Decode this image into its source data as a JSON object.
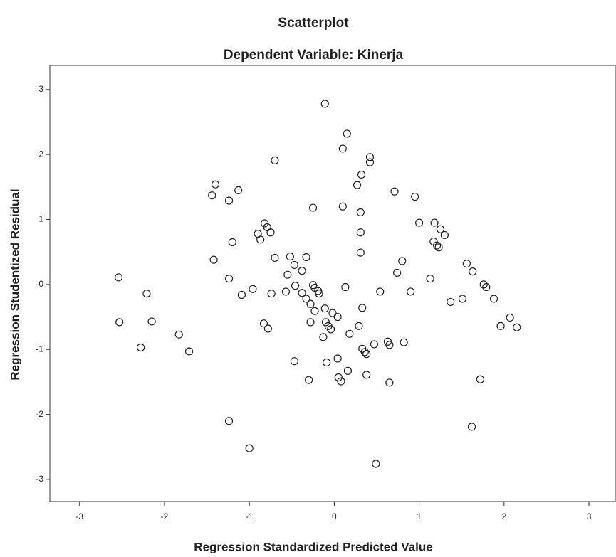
{
  "chart_data": {
    "type": "scatter",
    "title": "Scatterplot",
    "subtitle": "Dependent Variable: Kinerja",
    "x_label": "Regression Standardized Predicted Value",
    "y_label": "Regression Studentized Residual",
    "xlim": [
      -3.35,
      3.31
    ],
    "ylim": [
      -3.34,
      3.37
    ],
    "xticks": [
      -3,
      -2,
      -1,
      0,
      1,
      2,
      3
    ],
    "yticks": [
      -3,
      -2,
      -1,
      0,
      1,
      2,
      3
    ],
    "color": "#222222",
    "x": [
      -0.11,
      0.15,
      0.1,
      0.42,
      0.42,
      -0.7,
      0.32,
      -1.4,
      -1.13,
      -1.44,
      -1.24,
      0.27,
      0.71,
      0.95,
      -0.25,
      0.1,
      0.31,
      -0.82,
      -0.79,
      -0.75,
      -0.9,
      -0.87,
      1.0,
      1.18,
      1.25,
      1.3,
      0.31,
      -1.2,
      1.17,
      1.21,
      1.23,
      0.31,
      -0.7,
      -0.52,
      -0.33,
      -1.42,
      0.8,
      1.56,
      -0.47,
      -0.38,
      1.63,
      0.74,
      -0.55,
      1.13,
      -2.54,
      -1.24,
      1.76,
      1.79,
      -0.25,
      -0.23,
      -0.46,
      0.13,
      -0.96,
      -0.19,
      -1.09,
      -0.74,
      -0.57,
      -0.38,
      -0.18,
      0.54,
      0.9,
      -2.21,
      -0.33,
      1.51,
      1.88,
      -0.28,
      1.37,
      -0.23,
      -0.11,
      0.33,
      -0.02,
      0.04,
      -2.53,
      -2.15,
      -0.28,
      -0.1,
      -0.07,
      -0.04,
      -0.83,
      -0.78,
      0.29,
      1.96,
      2.07,
      2.15,
      0.18,
      -0.13,
      -1.83,
      0.63,
      0.65,
      0.82,
      0.47,
      0.33,
      0.36,
      0.38,
      -2.28,
      -1.71,
      0.04,
      -0.47,
      -0.09,
      0.16,
      0.05,
      0.08,
      0.38,
      -0.3,
      0.65,
      1.72,
      -1.24,
      1.62,
      -1.0,
      0.49
    ],
    "y": [
      2.78,
      2.32,
      2.09,
      1.96,
      1.88,
      1.91,
      1.69,
      1.54,
      1.45,
      1.37,
      1.29,
      1.53,
      1.43,
      1.35,
      1.18,
      1.2,
      1.11,
      0.94,
      0.88,
      0.8,
      0.78,
      0.69,
      0.95,
      0.95,
      0.85,
      0.76,
      0.8,
      0.65,
      0.66,
      0.6,
      0.57,
      0.49,
      0.41,
      0.43,
      0.42,
      0.38,
      0.36,
      0.32,
      0.3,
      0.21,
      0.2,
      0.18,
      0.15,
      0.09,
      0.11,
      0.09,
      0.0,
      -0.04,
      -0.01,
      -0.05,
      -0.02,
      -0.04,
      -0.07,
      -0.1,
      -0.16,
      -0.14,
      -0.11,
      -0.13,
      -0.14,
      -0.11,
      -0.11,
      -0.14,
      -0.22,
      -0.22,
      -0.22,
      -0.3,
      -0.27,
      -0.41,
      -0.37,
      -0.36,
      -0.44,
      -0.5,
      -0.58,
      -0.57,
      -0.58,
      -0.58,
      -0.64,
      -0.69,
      -0.6,
      -0.68,
      -0.64,
      -0.64,
      -0.51,
      -0.66,
      -0.76,
      -0.81,
      -0.77,
      -0.88,
      -0.93,
      -0.89,
      -0.92,
      -0.99,
      -1.04,
      -1.07,
      -0.97,
      -1.03,
      -1.14,
      -1.18,
      -1.2,
      -1.33,
      -1.43,
      -1.49,
      -1.39,
      -1.47,
      -1.51,
      -1.46,
      -2.1,
      -2.19,
      -2.52,
      -2.76
    ]
  }
}
